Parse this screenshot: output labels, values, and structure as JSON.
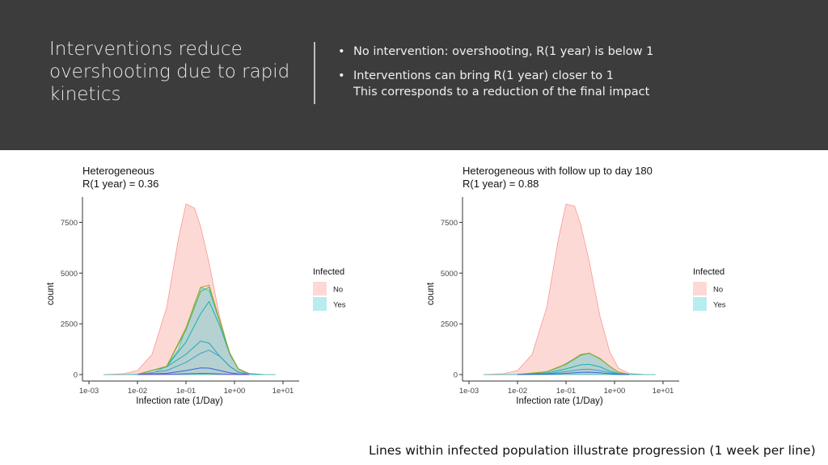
{
  "slide": {
    "title": "Interventions reduce overshooting due to rapid kinetics",
    "bullets": [
      {
        "lines": [
          "No intervention: overshooting, R(1 year) is below 1"
        ]
      },
      {
        "lines": [
          "Interventions can bring R(1 year) closer to 1",
          "This corresponds to a reduction of the final impact"
        ]
      }
    ],
    "caption": "Lines within infected population illustrate progression (1 week per line)",
    "colors": {
      "header_bg": "#3c3c3c",
      "no_fill": "#f8766d",
      "yes_fill": "#00bfc4"
    }
  },
  "chart_data": [
    {
      "type": "area",
      "title": "Heterogeneous",
      "subtitle": "R(1 year) = 0.36",
      "xlabel": "Infection rate (1/Day)",
      "ylabel": "count",
      "x_scale": "log10",
      "xlim": [
        0.001,
        10
      ],
      "ylim": [
        0,
        8750
      ],
      "x_ticks": [
        "1e-03",
        "1e-02",
        "1e-01",
        "1e+00",
        "1e+01"
      ],
      "y_ticks": [
        "0",
        "2500",
        "5000",
        "7500"
      ],
      "grid": false,
      "legend": {
        "title": "Infected",
        "entries": [
          "No",
          "Yes"
        ],
        "placement": "right"
      },
      "series": [
        {
          "name": "No",
          "x": [
            0.002,
            0.005,
            0.01,
            0.02,
            0.04,
            0.07,
            0.1,
            0.15,
            0.2,
            0.3,
            0.5,
            0.8,
            1.2,
            2,
            4,
            7
          ],
          "values": [
            0,
            40,
            200,
            1000,
            3300,
            6700,
            8400,
            8200,
            7300,
            5500,
            2800,
            1000,
            300,
            60,
            5,
            0
          ]
        },
        {
          "name": "Yes",
          "x": [
            0.002,
            0.005,
            0.01,
            0.02,
            0.04,
            0.07,
            0.1,
            0.15,
            0.2,
            0.3,
            0.5,
            0.8,
            1.2,
            2,
            4,
            7
          ],
          "values": [
            0,
            0,
            10,
            70,
            400,
            1250,
            2300,
            3500,
            4300,
            4150,
            2600,
            1050,
            280,
            50,
            5,
            0
          ]
        }
      ],
      "progression_lines": [
        {
          "x": [
            0.01,
            0.04,
            0.1,
            0.2,
            0.3,
            0.5,
            0.8,
            1.2,
            2
          ],
          "values": [
            5,
            200,
            600,
            1050,
            1200,
            900,
            400,
            120,
            0
          ],
          "color": "#3fa0c8"
        },
        {
          "x": [
            0.01,
            0.04,
            0.1,
            0.2,
            0.3,
            0.5,
            0.8,
            1.2,
            2
          ],
          "values": [
            8,
            380,
            1000,
            1650,
            1550,
            900,
            400,
            120,
            0
          ],
          "color": "#1fa9b8"
        },
        {
          "x": [
            0.01,
            0.04,
            0.1,
            0.2,
            0.3,
            0.5,
            0.8,
            1.2,
            2
          ],
          "values": [
            10,
            400,
            1600,
            3000,
            3600,
            2400,
            1000,
            280,
            0
          ],
          "color": "#17b3a6"
        },
        {
          "x": [
            0.01,
            0.04,
            0.1,
            0.2,
            0.3,
            0.5,
            0.8,
            1.2,
            2
          ],
          "values": [
            10,
            400,
            2200,
            4100,
            4300,
            2600,
            1050,
            280,
            0
          ],
          "color": "#5bb35a"
        },
        {
          "x": [
            0.01,
            0.04,
            0.1,
            0.2,
            0.3,
            0.5,
            0.8,
            1.2,
            2
          ],
          "values": [
            10,
            400,
            2300,
            4300,
            4400,
            2650,
            1060,
            285,
            0
          ],
          "color": "#9aa826"
        },
        {
          "x": [
            0.01,
            0.04,
            0.1,
            0.2,
            0.3,
            0.5,
            0.8,
            1.2,
            2
          ],
          "values": [
            5,
            60,
            200,
            330,
            320,
            200,
            90,
            30,
            0
          ],
          "color": "#3466d4"
        },
        {
          "x": [
            0.01,
            0.04,
            0.1,
            0.2,
            0.3,
            0.5,
            0.8,
            1.2,
            2
          ],
          "values": [
            2,
            15,
            40,
            60,
            55,
            35,
            15,
            5,
            0
          ],
          "color": "#7a52d6"
        }
      ]
    },
    {
      "type": "area",
      "title": "Heterogeneous with follow up to day 180",
      "subtitle": "R(1 year) = 0.88",
      "xlabel": "Infection rate (1/Day)",
      "ylabel": "count",
      "x_scale": "log10",
      "xlim": [
        0.001,
        10
      ],
      "ylim": [
        0,
        8750
      ],
      "x_ticks": [
        "1e-03",
        "1e-02",
        "1e-01",
        "1e+00",
        "1e+01"
      ],
      "y_ticks": [
        "0",
        "2500",
        "5000",
        "7500"
      ],
      "grid": false,
      "legend": {
        "title": "Infected",
        "entries": [
          "No",
          "Yes"
        ],
        "placement": "right"
      },
      "series": [
        {
          "name": "No",
          "x": [
            0.002,
            0.005,
            0.01,
            0.02,
            0.04,
            0.07,
            0.1,
            0.15,
            0.2,
            0.3,
            0.5,
            0.8,
            1.2,
            2,
            4,
            7
          ],
          "values": [
            0,
            40,
            200,
            1000,
            3300,
            6700,
            8400,
            8300,
            7400,
            5600,
            2900,
            1100,
            320,
            60,
            5,
            0
          ]
        },
        {
          "name": "Yes",
          "x": [
            0.002,
            0.005,
            0.01,
            0.02,
            0.04,
            0.07,
            0.1,
            0.15,
            0.2,
            0.3,
            0.5,
            0.8,
            1.2,
            2,
            4,
            7
          ],
          "values": [
            0,
            0,
            5,
            40,
            150,
            350,
            550,
            800,
            1000,
            1050,
            800,
            400,
            120,
            20,
            2,
            0
          ]
        }
      ],
      "progression_lines": [
        {
          "x": [
            0.01,
            0.04,
            0.1,
            0.2,
            0.3,
            0.5,
            0.8,
            1.2,
            2
          ],
          "values": [
            2,
            40,
            150,
            250,
            270,
            200,
            100,
            30,
            0
          ],
          "color": "#3fa0c8"
        },
        {
          "x": [
            0.01,
            0.04,
            0.1,
            0.2,
            0.3,
            0.5,
            0.8,
            1.2,
            2
          ],
          "values": [
            3,
            80,
            280,
            480,
            500,
            380,
            170,
            50,
            0
          ],
          "color": "#17b3a6"
        },
        {
          "x": [
            0.01,
            0.04,
            0.1,
            0.2,
            0.3,
            0.5,
            0.8,
            1.2,
            2
          ],
          "values": [
            5,
            140,
            500,
            950,
            1050,
            780,
            400,
            120,
            0
          ],
          "color": "#5bb35a"
        },
        {
          "x": [
            0.01,
            0.04,
            0.1,
            0.2,
            0.3,
            0.5,
            0.8,
            1.2,
            2
          ],
          "values": [
            5,
            145,
            520,
            980,
            1060,
            800,
            400,
            120,
            0
          ],
          "color": "#9aa826"
        },
        {
          "x": [
            0.01,
            0.04,
            0.1,
            0.2,
            0.3,
            0.5,
            0.8,
            1.2,
            2
          ],
          "values": [
            2,
            20,
            60,
            110,
            120,
            90,
            40,
            12,
            0
          ],
          "color": "#3466d4"
        }
      ]
    }
  ]
}
